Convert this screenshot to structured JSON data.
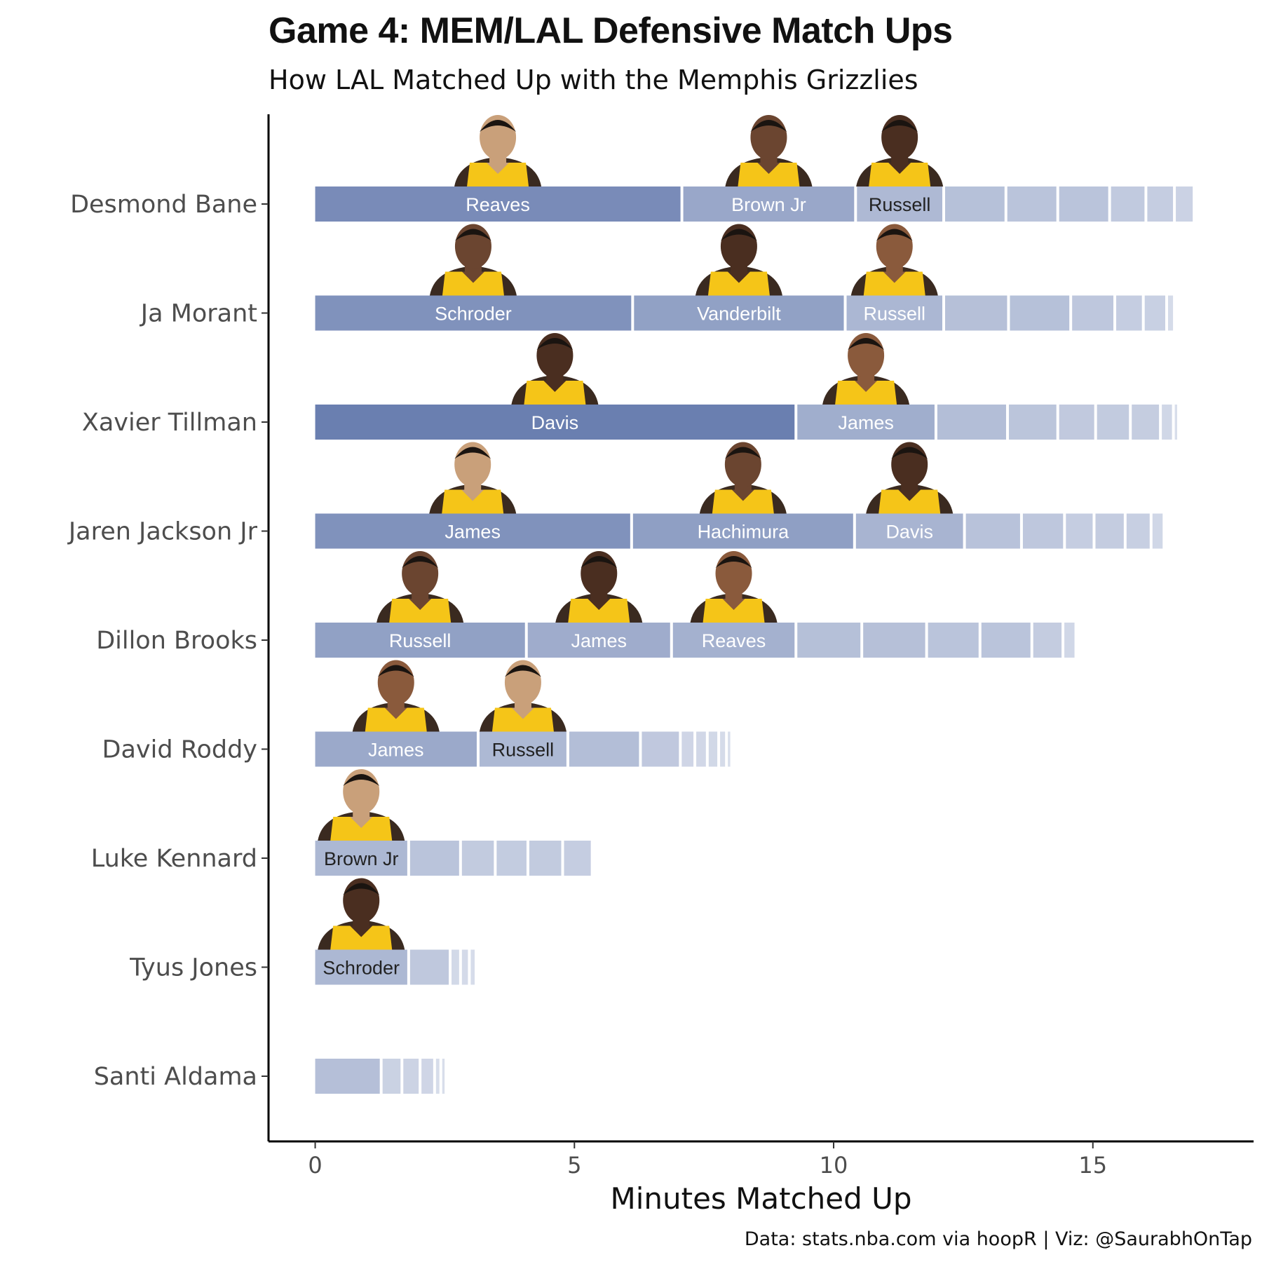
{
  "title": "Game 4: MEM/LAL Defensive Match Ups",
  "subtitle": "How LAL Matched Up with the Memphis Grizzlies",
  "caption": "Data: stats.nba.com via hoopR | Viz: @SaurabhOnTap",
  "chart_data": {
    "type": "bar",
    "orientation": "horizontal-stacked",
    "xlabel": "Minutes Matched Up",
    "ylabel": "",
    "xlim": [
      -0.9,
      18.1
    ],
    "xticks": [
      0,
      5,
      10,
      15
    ],
    "categories": [
      "Desmond Bane",
      "Ja Morant",
      "Xavier Tillman",
      "Jaren Jackson Jr",
      "Dillon Brooks",
      "David Roddy",
      "Luke Kennard",
      "Tyus Jones",
      "Santi Aldama"
    ],
    "grid": false,
    "legend": "none",
    "colors": {
      "high": "#6a7fb0",
      "low": "#e9ecf4",
      "light_text": "#ffffff",
      "dark_text": "#222222"
    },
    "series": [
      {
        "player": "Desmond Bane",
        "segments": [
          {
            "defender": "Reaves",
            "minutes": 7.1,
            "photo": true
          },
          {
            "defender": "Brown Jr",
            "minutes": 3.35,
            "photo": true
          },
          {
            "defender": "Russell",
            "minutes": 1.7,
            "photo": true
          },
          {
            "minutes": 1.2
          },
          {
            "minutes": 1.0
          },
          {
            "minutes": 1.0
          },
          {
            "minutes": 0.7
          },
          {
            "minutes": 0.55
          },
          {
            "minutes": 0.38
          }
        ]
      },
      {
        "player": "Ja Morant",
        "segments": [
          {
            "defender": "Schroder",
            "minutes": 6.15,
            "photo": true
          },
          {
            "defender": "Vanderbilt",
            "minutes": 4.1,
            "photo": true
          },
          {
            "defender": "Russell",
            "minutes": 1.9,
            "photo": true
          },
          {
            "minutes": 1.25
          },
          {
            "minutes": 1.2
          },
          {
            "minutes": 0.85
          },
          {
            "minutes": 0.55
          },
          {
            "minutes": 0.45
          },
          {
            "minutes": 0.15
          }
        ]
      },
      {
        "player": "Xavier Tillman",
        "segments": [
          {
            "defender": "Davis",
            "minutes": 9.3,
            "photo": true
          },
          {
            "defender": "James",
            "minutes": 2.7,
            "photo": true
          },
          {
            "minutes": 1.38
          },
          {
            "minutes": 0.97
          },
          {
            "minutes": 0.73
          },
          {
            "minutes": 0.67
          },
          {
            "minutes": 0.58
          },
          {
            "minutes": 0.25
          },
          {
            "minutes": 0.1
          }
        ]
      },
      {
        "player": "Jaren Jackson Jr",
        "segments": [
          {
            "defender": "James",
            "minutes": 6.13,
            "photo": true
          },
          {
            "defender": "Hachimura",
            "minutes": 4.3,
            "photo": true
          },
          {
            "defender": "Davis",
            "minutes": 2.12,
            "photo": true
          },
          {
            "minutes": 1.1
          },
          {
            "minutes": 0.83
          },
          {
            "minutes": 0.57
          },
          {
            "minutes": 0.6
          },
          {
            "minutes": 0.5
          },
          {
            "minutes": 0.25
          }
        ]
      },
      {
        "player": "Dillon Brooks",
        "segments": [
          {
            "defender": "Russell",
            "minutes": 4.1,
            "photo": true
          },
          {
            "defender": "James",
            "minutes": 2.8,
            "photo": true
          },
          {
            "defender": "Reaves",
            "minutes": 2.4,
            "photo": true
          },
          {
            "minutes": 1.27
          },
          {
            "minutes": 1.25
          },
          {
            "minutes": 1.03
          },
          {
            "minutes": 1.0
          },
          {
            "minutes": 0.6
          },
          {
            "minutes": 0.25
          }
        ]
      },
      {
        "player": "David Roddy",
        "segments": [
          {
            "defender": "James",
            "minutes": 3.17,
            "photo": true
          },
          {
            "defender": "Russell",
            "minutes": 1.73,
            "photo": true
          },
          {
            "minutes": 1.4
          },
          {
            "minutes": 0.77
          },
          {
            "minutes": 0.28
          },
          {
            "minutes": 0.24
          },
          {
            "minutes": 0.22
          },
          {
            "minutes": 0.15
          },
          {
            "minutes": 0.1
          }
        ]
      },
      {
        "player": "Luke Kennard",
        "segments": [
          {
            "defender": "Brown Jr",
            "minutes": 1.83,
            "photo": true
          },
          {
            "minutes": 1.0
          },
          {
            "minutes": 0.67
          },
          {
            "minutes": 0.63
          },
          {
            "minutes": 0.67
          },
          {
            "minutes": 0.57
          }
        ]
      },
      {
        "player": "Tyus Jones",
        "segments": [
          {
            "defender": "Schroder",
            "minutes": 1.83,
            "photo": true
          },
          {
            "minutes": 0.8
          },
          {
            "minutes": 0.2
          },
          {
            "minutes": 0.17
          },
          {
            "minutes": 0.13
          }
        ]
      },
      {
        "player": "Santi Aldama",
        "segments": [
          {
            "minutes": 1.3
          },
          {
            "minutes": 0.4
          },
          {
            "minutes": 0.35
          },
          {
            "minutes": 0.28
          },
          {
            "minutes": 0.12
          },
          {
            "minutes": 0.1
          }
        ]
      }
    ]
  }
}
